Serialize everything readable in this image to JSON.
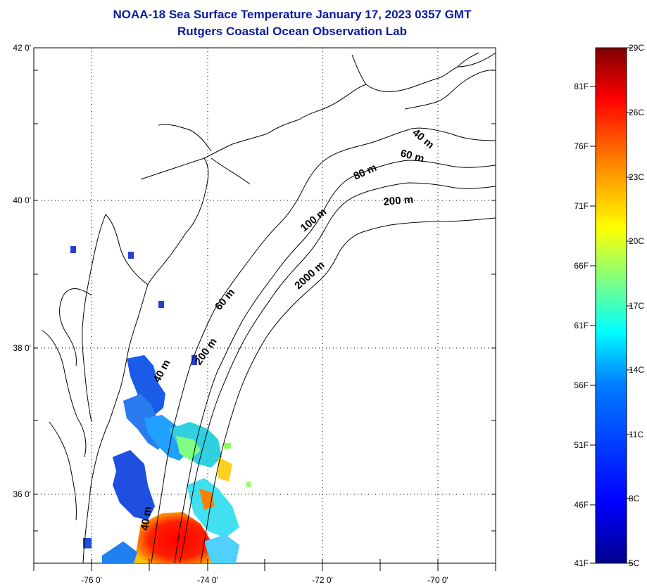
{
  "title": {
    "line1": "NOAA-18 Sea Surface Temperature January 17, 2023 0357 GMT",
    "line2": "Rutgers Coastal Ocean Observation Lab"
  },
  "map": {
    "lat_labels": [
      "42 0'",
      "40 0'",
      "38 0'",
      "36 0'"
    ],
    "lon_labels": [
      "-76 0'",
      "-74 0'",
      "-72 0'",
      "-70 0'"
    ],
    "contour_labels": [
      "40 m",
      "60 m",
      "80 m",
      "200 m",
      "100 m",
      "2000 m",
      "60 m",
      "40 m",
      "200 m",
      "40 m"
    ]
  },
  "colorbar": {
    "fahrenheit": [
      "81F",
      "76F",
      "71F",
      "66F",
      "61F",
      "56F",
      "51F",
      "46F",
      "41F"
    ],
    "celsius": [
      "29C",
      "26C",
      "23C",
      "20C",
      "17C",
      "14C",
      "11C",
      "8C",
      "5C"
    ],
    "colors": [
      "#00008f",
      "#0000ff",
      "#0080ff",
      "#00ffff",
      "#80ff80",
      "#ffff00",
      "#ff8000",
      "#ff0000",
      "#800000"
    ]
  }
}
